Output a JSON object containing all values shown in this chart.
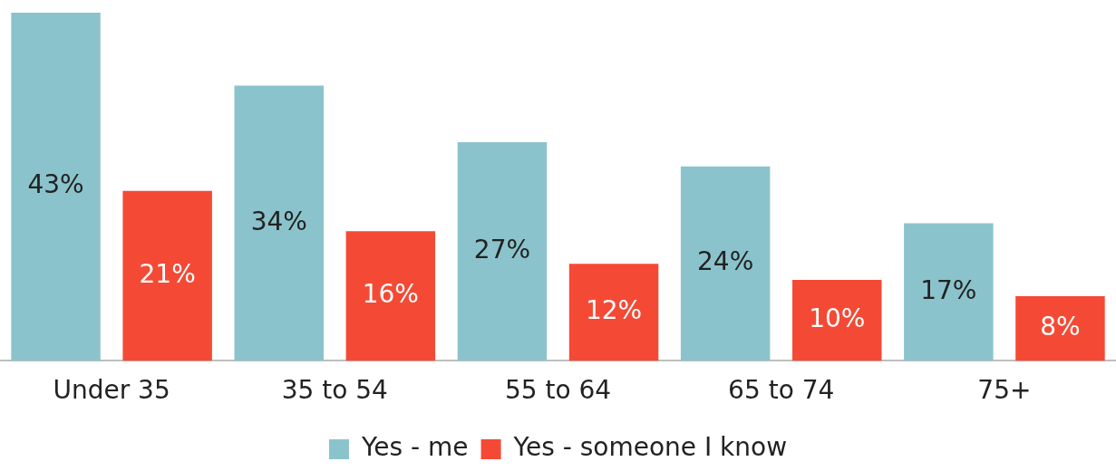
{
  "chart_data": {
    "type": "bar",
    "categories": [
      "Under 35",
      "35 to 54",
      "55 to 64",
      "65 to 74",
      "75+"
    ],
    "series": [
      {
        "name": "Yes - me",
        "color": "#8bc3cc",
        "values": [
          43,
          34,
          27,
          24,
          17
        ],
        "value_labels": [
          "43%",
          "34%",
          "27%",
          "24%",
          "17%"
        ]
      },
      {
        "name": "Yes - someone I know",
        "color": "#f44a35",
        "values": [
          21,
          16,
          12,
          10,
          8
        ],
        "value_labels": [
          "21%",
          "16%",
          "12%",
          "10%",
          "8%"
        ]
      }
    ],
    "grid": false,
    "legend": "bottom"
  }
}
